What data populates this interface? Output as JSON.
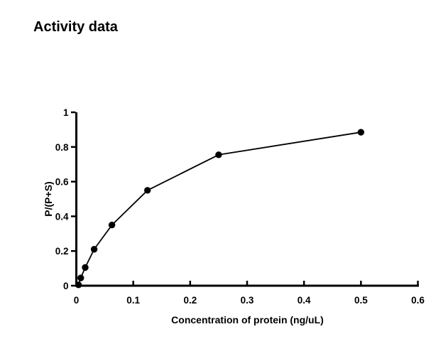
{
  "chart_data": {
    "type": "line",
    "title": "Activity data",
    "xlabel": "Concentration of protein (ng/uL)",
    "ylabel": "P/(P+S)",
    "x": [
      0.0039,
      0.0078,
      0.0156,
      0.0313,
      0.0625,
      0.125,
      0.25,
      0.5
    ],
    "y": [
      0.005,
      0.045,
      0.105,
      0.21,
      0.35,
      0.55,
      0.755,
      0.885
    ],
    "xlim": [
      0,
      0.6
    ],
    "ylim": [
      0,
      1
    ],
    "x_ticks": [
      0,
      0.1,
      0.2,
      0.3,
      0.4,
      0.5,
      0.6
    ],
    "x_tick_labels": [
      "0",
      "0.1",
      "0.2",
      "0.3",
      "0.4",
      "0.5",
      "0.6"
    ],
    "y_ticks": [
      0,
      0.2,
      0.4,
      0.6,
      0.8,
      1
    ],
    "y_tick_labels": [
      "0",
      "0.2",
      "0.4",
      "0.6",
      "0.8",
      "1"
    ],
    "grid": false,
    "legend": "none",
    "marker": "filled-circle",
    "colors": {
      "line": "#000000",
      "marker": "#000000",
      "axis": "#000000",
      "text": "#000000",
      "background": "#ffffff"
    }
  }
}
